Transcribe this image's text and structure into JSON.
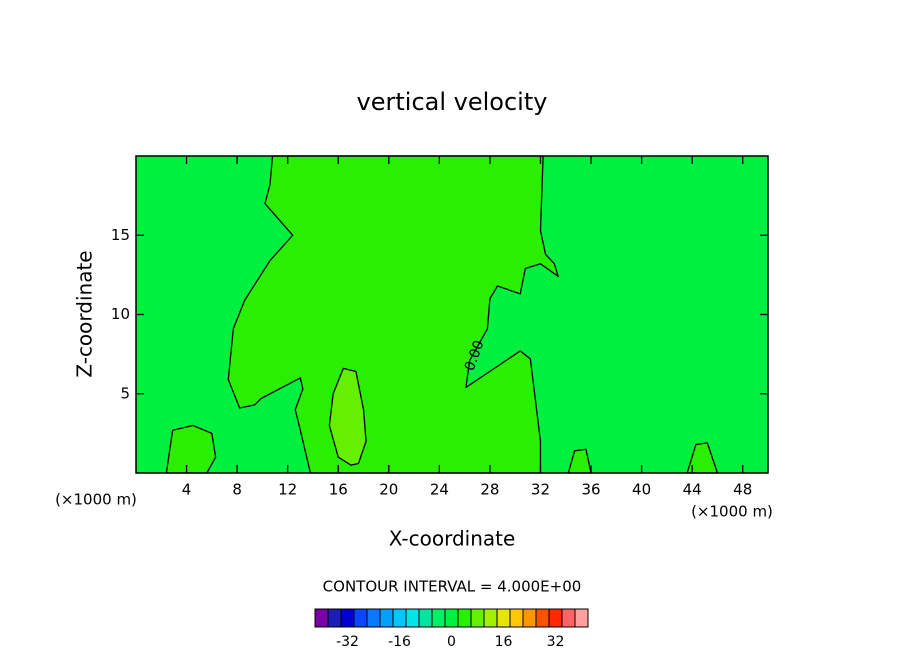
{
  "chart_data": {
    "type": "contour",
    "title": "vertical velocity",
    "xlabel": "X-coordinate",
    "ylabel": "Z-coordinate",
    "x_unit_left": "(×1000 m)",
    "x_unit_right": "(×1000 m)",
    "xlim": [
      0,
      50
    ],
    "ylim": [
      0,
      20
    ],
    "xticks": [
      4,
      8,
      12,
      16,
      20,
      24,
      28,
      32,
      36,
      40,
      44,
      48
    ],
    "yticks": [
      5,
      10,
      15
    ],
    "background_level": 0,
    "regions": [
      {
        "level": 4,
        "points": [
          [
            10.8,
            20
          ],
          [
            10.6,
            18.2
          ],
          [
            10.2,
            17
          ],
          [
            12.4,
            15
          ],
          [
            10.6,
            13.4
          ],
          [
            8.6,
            10.9
          ],
          [
            7.7,
            9.1
          ],
          [
            7.3,
            5.9
          ],
          [
            8.2,
            4.1
          ],
          [
            9.4,
            4.3
          ],
          [
            9.9,
            4.7
          ],
          [
            13,
            6
          ],
          [
            13.2,
            5.3
          ],
          [
            12.6,
            4
          ],
          [
            13,
            2.7
          ],
          [
            13.8,
            0
          ],
          [
            32,
            0
          ],
          [
            32,
            2
          ],
          [
            31.2,
            7.2
          ],
          [
            30.4,
            7.7
          ],
          [
            27.6,
            6.2
          ],
          [
            26.1,
            5.4
          ],
          [
            26.4,
            7.1
          ],
          [
            27.8,
            9.1
          ],
          [
            28,
            11
          ],
          [
            28.6,
            11.8
          ],
          [
            30.4,
            11.3
          ],
          [
            30.8,
            12.9
          ],
          [
            32,
            13.2
          ],
          [
            33.4,
            12.4
          ],
          [
            33.1,
            13.2
          ],
          [
            32.4,
            13.8
          ],
          [
            32,
            15.3
          ],
          [
            32.2,
            19.8
          ],
          [
            32.2,
            20
          ]
        ]
      },
      {
        "level": 8,
        "points": [
          [
            17.0,
            0.5
          ],
          [
            16.0,
            1
          ],
          [
            15.3,
            3
          ],
          [
            15.6,
            5
          ],
          [
            16.4,
            6.6
          ],
          [
            17.4,
            6.4
          ],
          [
            18.0,
            4
          ],
          [
            18.2,
            2
          ],
          [
            17.6,
            0.6
          ]
        ]
      },
      {
        "level": 4,
        "points": [
          [
            2.4,
            0
          ],
          [
            2.9,
            2.7
          ],
          [
            4.5,
            3
          ],
          [
            6.0,
            2.5
          ],
          [
            6.3,
            1
          ],
          [
            5.6,
            0
          ]
        ]
      },
      {
        "level": 4,
        "points": [
          [
            34.2,
            0
          ],
          [
            34.7,
            1.4
          ],
          [
            35.6,
            1.5
          ],
          [
            36.0,
            0
          ]
        ]
      },
      {
        "level": 4,
        "points": [
          [
            43.6,
            0
          ],
          [
            44.3,
            1.8
          ],
          [
            45.2,
            1.9
          ],
          [
            46.0,
            0
          ]
        ]
      }
    ],
    "contour_label": {
      "text": "0.00",
      "x": 26.8,
      "z": 7.4
    },
    "contour_interval": "CONTOUR INTERVAL = 4.000E+00",
    "colorbar": {
      "levels": [
        -40,
        -36,
        -32,
        -28,
        -24,
        -20,
        -16,
        -12,
        -8,
        -4,
        0,
        4,
        8,
        12,
        16,
        20,
        24,
        28,
        32,
        36,
        40
      ],
      "colors": [
        "#7a00a8",
        "#1e1eb4",
        "#0000d2",
        "#0a46ff",
        "#0a78ff",
        "#00a0ff",
        "#00c8ff",
        "#00e6e6",
        "#00e6a0",
        "#00f064",
        "#00f040",
        "#28f000",
        "#64f000",
        "#a0f000",
        "#e6e600",
        "#ffc800",
        "#ff9600",
        "#ff5000",
        "#ff2800",
        "#ff6464",
        "#ffa0a0"
      ],
      "ticks": [
        -32,
        -16,
        0,
        16,
        32
      ]
    }
  }
}
